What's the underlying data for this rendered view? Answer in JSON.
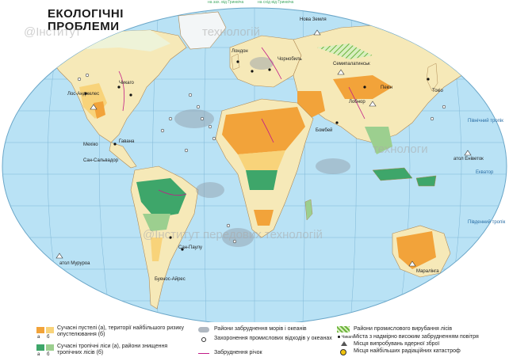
{
  "title": {
    "line1": "ЕКОЛОГІЧНІ",
    "line2": "ПРОБЛЕМИ"
  },
  "watermark": {
    "text1": "@Інститут",
    "text2": "технологій",
    "text3": "@Інститут передових технологій",
    "text4": "технологи"
  },
  "top_scale": {
    "left": "на зах. від Гринвіча",
    "right": "на схід від Гринвіча"
  },
  "labels": {
    "nova_zemlya": "Нова Земля",
    "los_angeles": "Лос-Анджелес",
    "chicago": "Чикаго",
    "havana": "Гавана",
    "san_salvador": "Сан-Сальвадор",
    "london": "Лондон",
    "mexico": "Мехіко",
    "tokyo": "Токіо",
    "beijing": "Пекін",
    "lop_nor": "Лобнор",
    "bombay": "Бомбей",
    "atoll_eniwetok": "атол Еніветок",
    "atoll_mururoa": "атол Муруроа",
    "maralinga": "Маралінга",
    "buenos_aires": "Буенос-Айрес",
    "sao_paulo": "Сан-Паулу",
    "chernobyl": "Чорнобиль",
    "semipalatinsk": "Семипалатинськ",
    "north_tropic": "Північний тропік",
    "equator": "Екватор",
    "south_tropic": "Південний тропік"
  },
  "legend": {
    "col1": {
      "item1": "Сучасні пустелі (а), території найбільшого ризику опустелювання (б)",
      "item2": "Сучасні тропічні ліси (а), райони знищення тропічних лісів (б)",
      "a": "а",
      "b": "б"
    },
    "col2": {
      "item1": "Райони забруднення морів і океанів",
      "item2": "Захоронення промислових відходів у океанах",
      "item3": "Забруднення річок"
    },
    "col3": {
      "item1": "Райони промислового вирубання лісів",
      "item2_city": "Чикаго",
      "item2": "Міста з надмірно високим забрудненням повітря",
      "item3": "Місця випробувань ядерної зброї",
      "item4": "Місця найбільших радіаційних катастроф"
    }
  },
  "colors": {
    "ocean": "#b9e2f5",
    "land": "#f6e9b8",
    "desert": "#f2a33a",
    "desert_risk": "#f8d37a",
    "forest": "#3ea66a",
    "deforest": "#9ccf8f",
    "pollution": "#8f9aa6",
    "logging": "#7dbb3e",
    "river": "#c21c88"
  }
}
